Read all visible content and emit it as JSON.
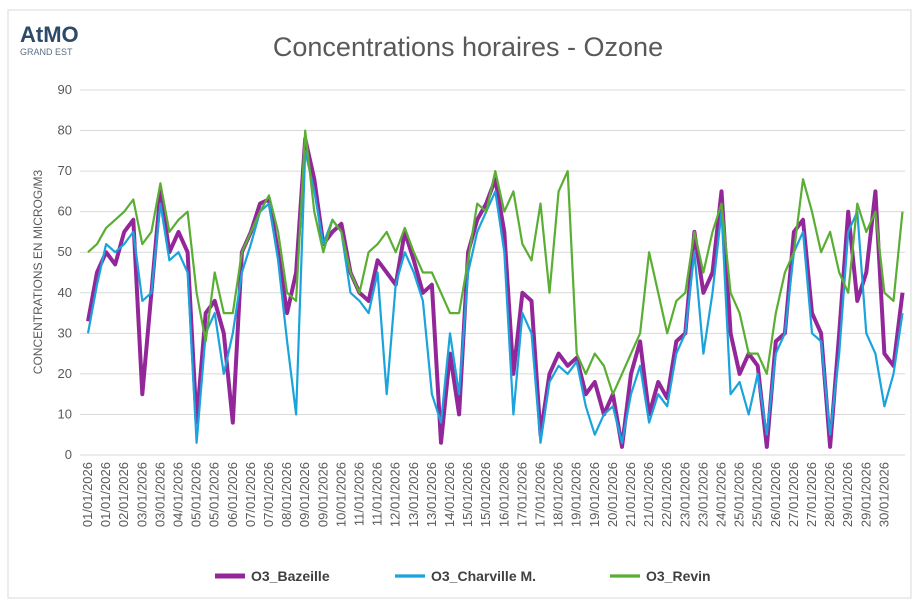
{
  "logo": {
    "name": "AtMO",
    "subtitle": "GRAND EST"
  },
  "chart_data": {
    "type": "line",
    "title": "Concentrations horaires - Ozone",
    "ylabel": "CONCENTRATIONS EN MICROG/M3",
    "ylim": [
      0,
      90
    ],
    "yticks": [
      0,
      10,
      20,
      30,
      40,
      50,
      60,
      70,
      80,
      90
    ],
    "grid": true,
    "legend": "bottom",
    "categories": [
      "01/01/2026",
      null,
      "01/01/2026",
      null,
      "02/01/2026",
      null,
      "03/01/2026",
      null,
      "03/01/2026",
      null,
      "04/01/2026",
      null,
      "05/01/2026",
      null,
      "05/01/2026",
      null,
      "06/01/2026",
      null,
      "07/01/2026",
      null,
      "07/01/2026",
      null,
      "08/01/2026",
      null,
      "09/01/2026",
      null,
      "09/01/2026",
      null,
      "10/01/2026",
      null,
      "11/01/2026",
      null,
      "11/01/2026",
      null,
      "12/01/2026",
      null,
      "13/01/2026",
      null,
      "13/01/2026",
      null,
      "14/01/2026",
      null,
      "15/01/2026",
      null,
      "15/01/2026",
      null,
      "16/01/2026",
      null,
      "17/01/2026",
      null,
      "17/01/2026",
      null,
      "18/01/2026",
      null,
      "19/01/2026",
      null,
      "19/01/2026",
      null,
      "20/01/2026",
      null,
      "21/01/2026",
      null,
      "21/01/2026",
      null,
      "22/01/2026",
      null,
      "23/01/2026",
      null,
      "23/01/2026",
      null,
      "24/01/2026",
      null,
      "25/01/2026",
      null,
      "25/01/2026",
      null,
      "26/01/2026",
      null,
      "27/01/2026",
      null,
      "27/01/2026",
      null,
      "28/01/2026",
      null,
      "29/01/2026",
      null,
      "29/01/2026",
      null,
      "30/01/2026",
      null,
      null
    ],
    "series": [
      {
        "name": "O3_Bazeille",
        "color": "#93279a",
        "width": 4,
        "values": [
          33,
          45,
          50,
          47,
          55,
          58,
          15,
          40,
          65,
          50,
          55,
          50,
          8,
          35,
          38,
          30,
          8,
          50,
          55,
          62,
          63,
          50,
          35,
          45,
          78,
          68,
          52,
          55,
          57,
          45,
          40,
          38,
          48,
          45,
          42,
          55,
          48,
          40,
          42,
          3,
          25,
          10,
          50,
          58,
          62,
          68,
          55,
          20,
          40,
          38,
          5,
          20,
          25,
          22,
          24,
          15,
          18,
          10,
          15,
          2,
          20,
          28,
          10,
          18,
          14,
          28,
          30,
          55,
          40,
          45,
          65,
          30,
          20,
          25,
          22,
          2,
          28,
          30,
          55,
          58,
          35,
          30,
          2,
          30,
          60,
          38,
          45,
          65,
          25,
          22,
          40
        ]
      },
      {
        "name": "O3_Charville M.",
        "color": "#1aa3dc",
        "width": 2.2,
        "values": [
          30,
          42,
          52,
          50,
          52,
          55,
          38,
          40,
          62,
          48,
          50,
          45,
          3,
          30,
          35,
          20,
          30,
          45,
          52,
          60,
          62,
          48,
          28,
          10,
          75,
          65,
          52,
          58,
          55,
          40,
          38,
          35,
          45,
          15,
          42,
          50,
          45,
          38,
          15,
          8,
          30,
          15,
          45,
          55,
          60,
          65,
          50,
          10,
          35,
          30,
          3,
          18,
          22,
          20,
          23,
          12,
          5,
          10,
          12,
          3,
          15,
          22,
          8,
          15,
          12,
          25,
          30,
          50,
          25,
          40,
          60,
          15,
          18,
          10,
          20,
          5,
          25,
          30,
          50,
          55,
          30,
          28,
          5,
          25,
          55,
          60,
          30,
          25,
          12,
          20,
          35
        ]
      },
      {
        "name": "O3_Revin",
        "color": "#5aae33",
        "width": 2.2,
        "values": [
          50,
          52,
          56,
          58,
          60,
          63,
          52,
          55,
          67,
          55,
          58,
          60,
          40,
          28,
          45,
          35,
          35,
          50,
          55,
          60,
          64,
          55,
          40,
          38,
          80,
          60,
          50,
          58,
          55,
          45,
          40,
          50,
          52,
          55,
          50,
          56,
          50,
          45,
          45,
          40,
          35,
          35,
          48,
          62,
          60,
          70,
          60,
          65,
          52,
          48,
          62,
          40,
          65,
          70,
          25,
          20,
          25,
          22,
          15,
          20,
          25,
          30,
          50,
          40,
          30,
          38,
          40,
          55,
          45,
          55,
          62,
          40,
          35,
          25,
          25,
          20,
          35,
          45,
          50,
          68,
          60,
          50,
          55,
          45,
          40,
          62,
          55,
          60,
          40,
          38,
          60
        ]
      }
    ]
  }
}
